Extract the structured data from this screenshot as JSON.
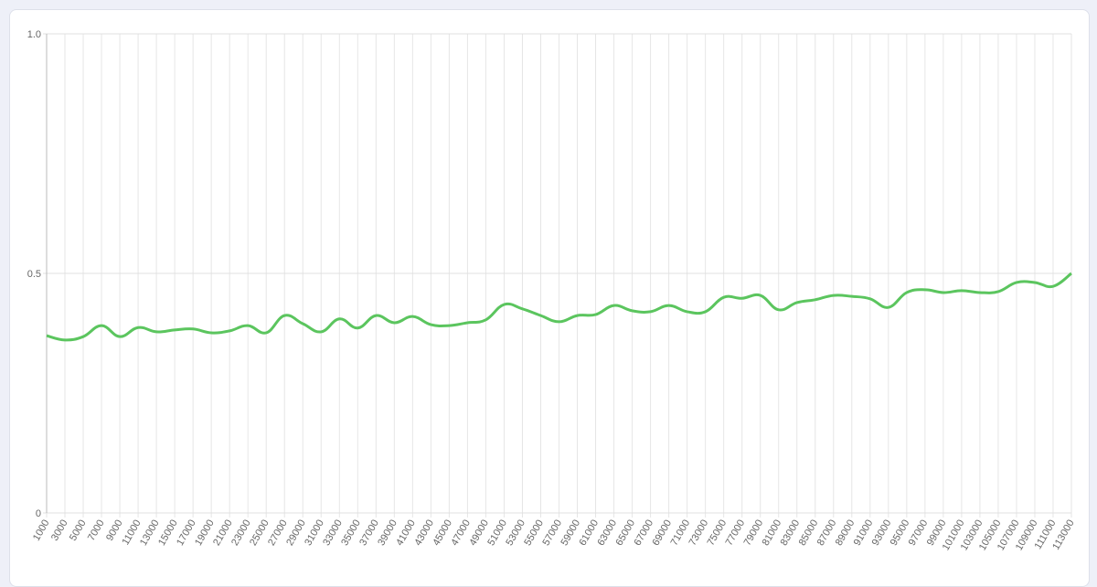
{
  "chart_data": {
    "type": "line",
    "categories": [
      "1000",
      "3000",
      "5000",
      "7000",
      "9000",
      "11000",
      "13000",
      "15000",
      "17000",
      "19000",
      "21000",
      "23000",
      "25000",
      "27000",
      "29000",
      "31000",
      "33000",
      "35000",
      "37000",
      "39000",
      "41000",
      "43000",
      "45000",
      "47000",
      "49000",
      "51000",
      "53000",
      "55000",
      "57000",
      "59000",
      "61000",
      "63000",
      "65000",
      "67000",
      "69000",
      "71000",
      "73000",
      "75000",
      "77000",
      "79000",
      "81000",
      "83000",
      "85000",
      "87000",
      "89000",
      "91000",
      "93000",
      "95000",
      "97000",
      "99000",
      "101000",
      "103000",
      "105000",
      "107000",
      "109000",
      "111000",
      "113000"
    ],
    "series": [
      {
        "color": "#5bc55e",
        "values": [
          0.37,
          0.361,
          0.368,
          0.391,
          0.368,
          0.387,
          0.378,
          0.382,
          0.384,
          0.376,
          0.38,
          0.391,
          0.376,
          0.412,
          0.395,
          0.378,
          0.405,
          0.386,
          0.412,
          0.397,
          0.41,
          0.393,
          0.391,
          0.397,
          0.403,
          0.435,
          0.426,
          0.412,
          0.399,
          0.412,
          0.414,
          0.433,
          0.422,
          0.42,
          0.433,
          0.42,
          0.42,
          0.45,
          0.448,
          0.454,
          0.424,
          0.439,
          0.445,
          0.454,
          0.452,
          0.447,
          0.429,
          0.46,
          0.466,
          0.46,
          0.464,
          0.46,
          0.462,
          0.481,
          0.481,
          0.473,
          0.5
        ]
      }
    ],
    "ylim": [
      0,
      1
    ],
    "yticks": [
      0,
      0.5,
      {
        "value": 1,
        "label": "1.0"
      }
    ],
    "grid": true
  }
}
